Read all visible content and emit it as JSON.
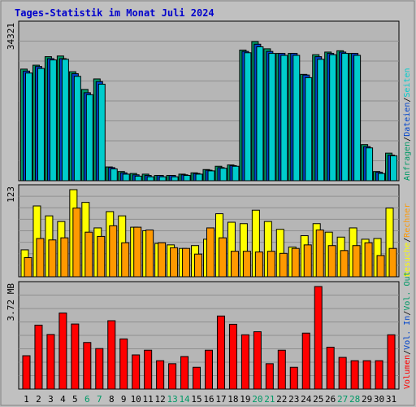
{
  "title": "Tages-Statistik im Monat Juli 2024",
  "colors": {
    "background": "#c0c0c0",
    "plot_bg": "#b6b6b6",
    "grid": "#8f8f8f",
    "title": "#0000cc",
    "hits": "#009966",
    "files": "#0044cc",
    "pages": "#00cccc",
    "visits": "#ffff00",
    "sites": "#ff9900",
    "kbytes": "#ff0000",
    "weekend_label": "#009966",
    "weekday_label": "#000000"
  },
  "chart_data": [
    {
      "type": "bar",
      "panel": "top",
      "ymax_label": "34321",
      "ylim": [
        0,
        34321
      ],
      "right_legend": [
        {
          "text": "Anfragen",
          "color": "#009966"
        },
        {
          "text": "Dateien",
          "color": "#0044cc"
        },
        {
          "text": "Seiten",
          "color": "#00cccc"
        }
      ],
      "categories": [
        "1",
        "2",
        "3",
        "4",
        "5",
        "6",
        "7",
        "8",
        "9",
        "10",
        "11",
        "12",
        "13",
        "14",
        "15",
        "16",
        "17",
        "18",
        "19",
        "20",
        "21",
        "22",
        "23",
        "24",
        "25",
        "26",
        "27",
        "28",
        "29",
        "30",
        "31"
      ],
      "series": [
        {
          "name": "Anfragen",
          "values": [
            24765,
            25638,
            27528,
            27674,
            24183,
            20258,
            22585,
            3060,
            2041,
            1603,
            1457,
            1165,
            1165,
            1457,
            1748,
            2477,
            3206,
            3497,
            28984,
            30877,
            29276,
            28256,
            28256,
            23601,
            27965,
            28547,
            28838,
            28256,
            8009,
            2041,
            6117
          ]
        },
        {
          "name": "Dateien",
          "values": [
            24329,
            25347,
            27092,
            27092,
            23748,
            19529,
            22003,
            2914,
            1748,
            1311,
            1165,
            1165,
            1165,
            1311,
            1603,
            2331,
            2914,
            3352,
            28692,
            30294,
            28692,
            28256,
            28256,
            23456,
            27528,
            28256,
            28547,
            28256,
            7572,
            1894,
            5680
          ]
        },
        {
          "name": "Seiten",
          "values": [
            23893,
            24911,
            26801,
            26947,
            23165,
            19091,
            21420,
            2622,
            1457,
            1020,
            874,
            874,
            874,
            1165,
            1457,
            2186,
            2768,
            3206,
            28401,
            29713,
            28256,
            27819,
            27819,
            22874,
            26947,
            27965,
            28256,
            27819,
            7281,
            1603,
            5534
          ]
        }
      ]
    },
    {
      "type": "bar",
      "panel": "middle",
      "ymax_label": "123",
      "ylim": [
        0,
        123
      ],
      "right_legend": [
        {
          "text": "Besuche",
          "color": "#ffff00"
        },
        {
          "text": "Rechner",
          "color": "#ff9900"
        }
      ],
      "categories": [
        "1",
        "2",
        "3",
        "4",
        "5",
        "6",
        "7",
        "8",
        "9",
        "10",
        "11",
        "12",
        "13",
        "14",
        "15",
        "16",
        "17",
        "18",
        "19",
        "20",
        "21",
        "22",
        "23",
        "24",
        "25",
        "26",
        "27",
        "28",
        "29",
        "30",
        "31"
      ],
      "series": [
        {
          "name": "Besuche",
          "values": [
            38,
            100,
            86,
            78,
            123,
            105,
            69,
            92,
            86,
            70,
            65,
            47,
            45,
            40,
            44,
            53,
            89,
            77,
            75,
            94,
            78,
            67,
            42,
            58,
            75,
            63,
            56,
            69,
            53,
            54,
            97
          ]
        },
        {
          "name": "Rechner",
          "values": [
            27,
            54,
            52,
            55,
            97,
            63,
            57,
            72,
            48,
            70,
            66,
            48,
            41,
            40,
            32,
            69,
            55,
            36,
            36,
            35,
            36,
            33,
            40,
            45,
            66,
            44,
            37,
            44,
            48,
            30,
            40
          ]
        }
      ]
    },
    {
      "type": "bar",
      "panel": "bottom",
      "ymax_label": "3.72 MB",
      "ylim": [
        0,
        3.72
      ],
      "right_legend": [
        {
          "text": "Volumen",
          "color": "#ff0000"
        },
        {
          "text": "Vol. In",
          "color": "#0044cc"
        },
        {
          "text": "Vol. Out",
          "color": "#009966"
        }
      ],
      "categories": [
        "1",
        "2",
        "3",
        "4",
        "5",
        "6",
        "7",
        "8",
        "9",
        "10",
        "11",
        "12",
        "13",
        "14",
        "15",
        "16",
        "17",
        "18",
        "19",
        "20",
        "21",
        "22",
        "23",
        "24",
        "25",
        "26",
        "27",
        "28",
        "29",
        "30",
        "31"
      ],
      "series": [
        {
          "name": "Volumen",
          "values": [
            1.21,
            2.32,
            1.98,
            2.76,
            2.36,
            1.69,
            1.47,
            2.48,
            1.82,
            1.24,
            1.41,
            1.03,
            0.92,
            1.18,
            0.79,
            1.41,
            2.65,
            2.35,
            1.97,
            2.08,
            0.92,
            1.41,
            0.79,
            2.03,
            3.72,
            1.52,
            1.15,
            1.03,
            1.03,
            1.03,
            1.97
          ]
        }
      ]
    }
  ],
  "x_labels": [
    "1",
    "2",
    "3",
    "4",
    "5",
    "6",
    "7",
    "8",
    "9",
    "10",
    "11",
    "12",
    "13",
    "14",
    "15",
    "16",
    "17",
    "18",
    "19",
    "20",
    "21",
    "22",
    "23",
    "24",
    "25",
    "26",
    "27",
    "28",
    "29",
    "30",
    "31"
  ],
  "weekend_days": [
    6,
    7,
    13,
    14,
    20,
    21,
    27,
    28
  ]
}
